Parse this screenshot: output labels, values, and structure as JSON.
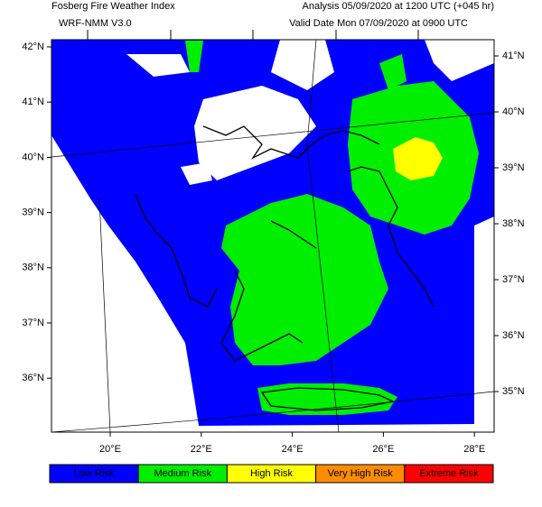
{
  "header": {
    "title": "Fosberg Fire Weather Index",
    "model": "WRF-NMM V3.0",
    "analysis": "Analysis 05/09/2020 at 1200 UTC (+045 hr)",
    "valid": "Valid Date Mon 07/09/2020 at 0900 UTC"
  },
  "axes": {
    "left_labels": [
      "42°N",
      "41°N",
      "40°N",
      "39°N",
      "38°N",
      "37°N",
      "36°N"
    ],
    "bottom_labels": [
      "20°E",
      "22°E",
      "24°E",
      "26°E",
      "28°E"
    ],
    "right_labels": [
      "41°N",
      "40°N",
      "39°N",
      "38°N",
      "37°N",
      "36°N",
      "35°N"
    ]
  },
  "legend": {
    "items": [
      {
        "label": "Low Risk",
        "color": "#0000ff"
      },
      {
        "label": "Medium Risk",
        "color": "#00ee00"
      },
      {
        "label": "High Risk",
        "color": "#ffff00"
      },
      {
        "label": "Very High Risk",
        "color": "#ff8c00"
      },
      {
        "label": "Extreme Risk",
        "color": "#ff0000"
      }
    ]
  }
}
